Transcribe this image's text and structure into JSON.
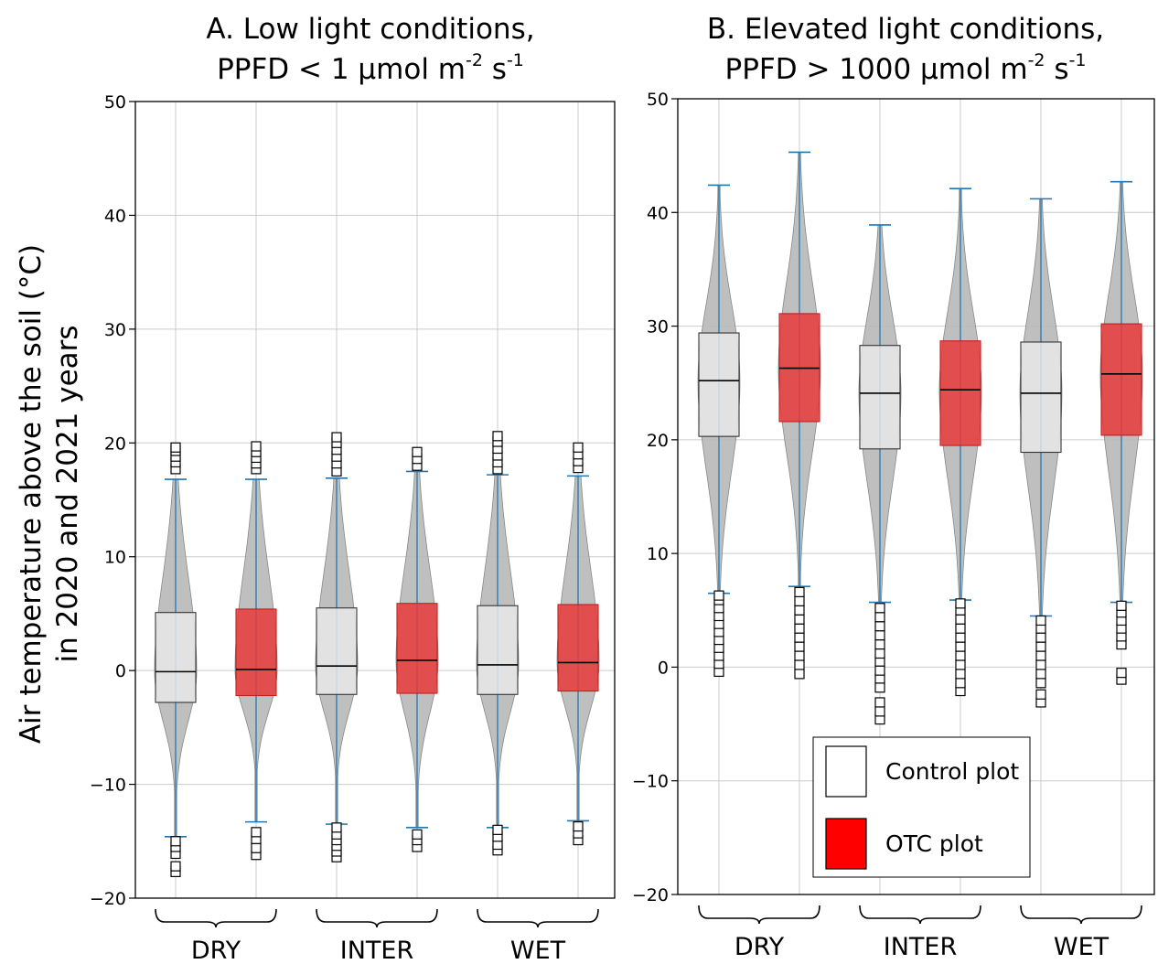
{
  "y_label_lines": [
    "Air temperature above the soil (°C)",
    "in 2020 and 2021 years"
  ],
  "legend": {
    "control": "Control plot",
    "otc": "OTC plot"
  },
  "colors": {
    "control_fill": "#e8e8e8",
    "otc_fill": "#e83a3a",
    "violin": "#b8b8b8",
    "whisker": "#1f77b4",
    "legend_otc": "#ff0000"
  },
  "chart_data": [
    {
      "type": "box",
      "title_line1": "A. Low light conditions,",
      "title_line2": {
        "pre": "PPFD < 1 μmol m",
        "sup1": "-2",
        "mid": " s",
        "sup2": "-1"
      },
      "ylim": [
        -20,
        50
      ],
      "yticks": [
        -20,
        -10,
        0,
        10,
        20,
        30,
        40,
        50
      ],
      "grid": true,
      "groups": [
        "DRY",
        "INTER",
        "WET"
      ],
      "series": [
        {
          "group": "DRY",
          "plot": "control",
          "q1": -2.8,
          "median": -0.1,
          "q3": 5.1,
          "whisker_low": -14.6,
          "whisker_high": 16.8,
          "violin_min": -14.6,
          "violin_max": 16.8,
          "outliers": [
            -17.7,
            -17.2,
            -16.1,
            -15.5,
            -15.0,
            17.7,
            18.3,
            18.8,
            19.3,
            19.6
          ]
        },
        {
          "group": "DRY",
          "plot": "otc",
          "q1": -2.2,
          "median": 0.1,
          "q3": 5.4,
          "whisker_low": -13.3,
          "whisker_high": 16.8,
          "violin_min": -13.3,
          "violin_max": 16.8,
          "outliers": [
            -16.2,
            -15.6,
            -14.8,
            -14.2,
            17.7,
            18.2,
            18.7,
            19.2,
            19.7
          ]
        },
        {
          "group": "INTER",
          "plot": "control",
          "q1": -2.1,
          "median": 0.4,
          "q3": 5.5,
          "whisker_low": -13.5,
          "whisker_high": 16.9,
          "violin_min": -13.5,
          "violin_max": 16.9,
          "outliers": [
            -16.4,
            -15.9,
            -15.4,
            -14.9,
            -14.4,
            -13.8,
            17.5,
            18.2,
            18.8,
            19.4,
            20.0,
            20.5
          ]
        },
        {
          "group": "INTER",
          "plot": "otc",
          "q1": -2.0,
          "median": 0.9,
          "q3": 5.9,
          "whisker_low": -13.8,
          "whisker_high": 17.5,
          "violin_min": -13.8,
          "violin_max": 17.5,
          "outliers": [
            -15.5,
            -14.9,
            -14.4,
            18.0,
            18.6,
            19.2
          ]
        },
        {
          "group": "WET",
          "plot": "control",
          "q1": -2.1,
          "median": 0.5,
          "q3": 5.7,
          "whisker_low": -13.8,
          "whisker_high": 17.2,
          "violin_min": -13.8,
          "violin_max": 17.2,
          "outliers": [
            -15.8,
            -15.3,
            -14.6,
            -14.0,
            17.7,
            18.3,
            18.9,
            19.5,
            20.1,
            20.6
          ]
        },
        {
          "group": "WET",
          "plot": "otc",
          "q1": -1.8,
          "median": 0.7,
          "q3": 5.8,
          "whisker_low": -13.2,
          "whisker_high": 17.1,
          "violin_min": -13.2,
          "violin_max": 17.1,
          "outliers": [
            -14.9,
            -14.3,
            -13.7,
            17.8,
            18.4,
            19.0,
            19.6
          ]
        }
      ]
    },
    {
      "type": "box",
      "title_line1": "B. Elevated light conditions,",
      "title_line2": {
        "pre": "PPFD > 1000 μmol m",
        "sup1": "-2",
        "mid": " s",
        "sup2": "-1"
      },
      "ylim": [
        -20,
        50
      ],
      "yticks": [
        -20,
        -10,
        0,
        10,
        20,
        30,
        40,
        50
      ],
      "grid": true,
      "groups": [
        "DRY",
        "INTER",
        "WET"
      ],
      "series": [
        {
          "group": "DRY",
          "plot": "control",
          "q1": 20.3,
          "median": 25.2,
          "q3": 29.4,
          "whisker_low": 6.5,
          "whisker_high": 42.4,
          "violin_min": 6.5,
          "violin_max": 42.4,
          "outliers": [
            -0.4,
            0.3,
            1.0,
            1.7,
            2.4,
            3.1,
            3.8,
            4.5,
            5.2,
            5.9,
            6.3
          ]
        },
        {
          "group": "DRY",
          "plot": "otc",
          "q1": 21.6,
          "median": 26.3,
          "q3": 31.1,
          "whisker_low": 7.1,
          "whisker_high": 45.3,
          "violin_min": 7.1,
          "violin_max": 45.3,
          "outliers": [
            -0.6,
            0.2,
            1.0,
            1.8,
            2.6,
            3.4,
            4.2,
            5.0,
            5.8,
            6.6
          ]
        },
        {
          "group": "INTER",
          "plot": "control",
          "q1": 19.2,
          "median": 24.1,
          "q3": 28.3,
          "whisker_low": 5.7,
          "whisker_high": 38.9,
          "violin_min": 5.7,
          "violin_max": 38.9,
          "outliers": [
            -4.6,
            -3.9,
            -3.1,
            -1.8,
            -1.0,
            -0.3,
            0.5,
            1.2,
            2.0,
            2.8,
            3.6,
            4.4,
            5.2
          ]
        },
        {
          "group": "INTER",
          "plot": "otc",
          "q1": 19.5,
          "median": 24.4,
          "q3": 28.7,
          "whisker_low": 5.9,
          "whisker_high": 42.1,
          "violin_min": 5.9,
          "violin_max": 42.1,
          "outliers": [
            -2.1,
            -1.4,
            -0.6,
            0.2,
            1.0,
            1.8,
            2.6,
            3.4,
            4.2,
            5.0,
            5.6
          ]
        },
        {
          "group": "WET",
          "plot": "control",
          "q1": 18.9,
          "median": 24.1,
          "q3": 28.6,
          "whisker_low": 4.5,
          "whisker_high": 41.2,
          "violin_min": 4.5,
          "violin_max": 41.2,
          "outliers": [
            -3.1,
            -2.4,
            -1.4,
            -0.6,
            0.2,
            1.0,
            1.8,
            2.6,
            3.4,
            4.1
          ]
        },
        {
          "group": "WET",
          "plot": "otc",
          "q1": 20.4,
          "median": 25.8,
          "q3": 30.2,
          "whisker_low": 5.7,
          "whisker_high": 42.7,
          "violin_min": 5.7,
          "violin_max": 42.7,
          "outliers": [
            -1.1,
            -0.5,
            2.0,
            2.7,
            3.4,
            4.1,
            4.8,
            5.4
          ]
        }
      ]
    }
  ]
}
